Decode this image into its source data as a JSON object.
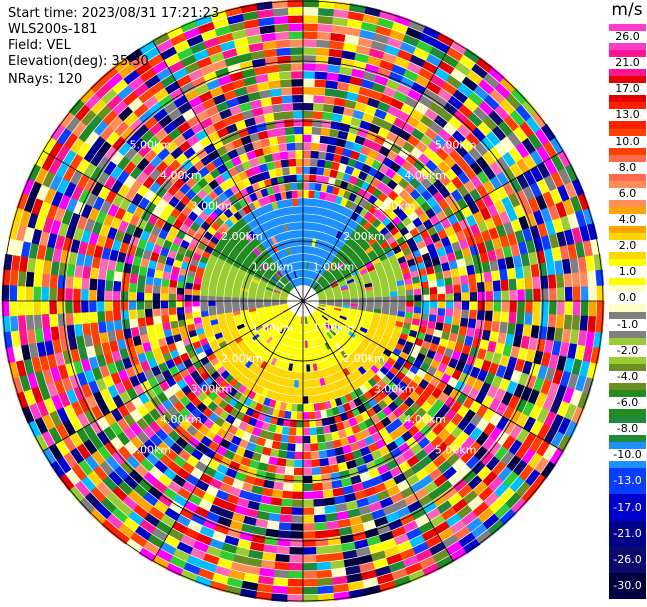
{
  "header": {
    "start_time": "Start time: 2023/08/31 17:21:23",
    "instrument": "WLS200s-181",
    "field": "Field: VEL",
    "elevation": "Elevation(deg): 35.30",
    "nrays": "NRays: 120"
  },
  "colorbar": {
    "unit": "m/s",
    "labels": [
      "26.0",
      "21.0",
      "17.0",
      "13.0",
      "10.0",
      "8.0",
      "6.0",
      "4.0",
      "2.0",
      "1.0",
      "0.0",
      "-1.0",
      "-2.0",
      "-4.0",
      "-6.0",
      "-8.0",
      "-10.0",
      "-13.0",
      "-17.0",
      "-21.0",
      "-26.0",
      "-30.0"
    ],
    "colors": [
      "#ff3cc8",
      "#ff1493",
      "#e60000",
      "#ff2000",
      "#ff4000",
      "#ff6a4a",
      "#ff8c5a",
      "#ffa500",
      "#ffd700",
      "#ffff00",
      "#ffffc8",
      "#808080",
      "#9acd32",
      "#6b8e23",
      "#228b22",
      "#1e8a3a",
      "#1e90ff",
      "#0a3dff",
      "#0000cd",
      "#00008b",
      "#0b0b6e",
      "#000040"
    ]
  },
  "range_rings": {
    "labels": [
      "1.00km",
      "2.00km",
      "3.00km",
      "4.00km",
      "5.00km"
    ]
  }
}
